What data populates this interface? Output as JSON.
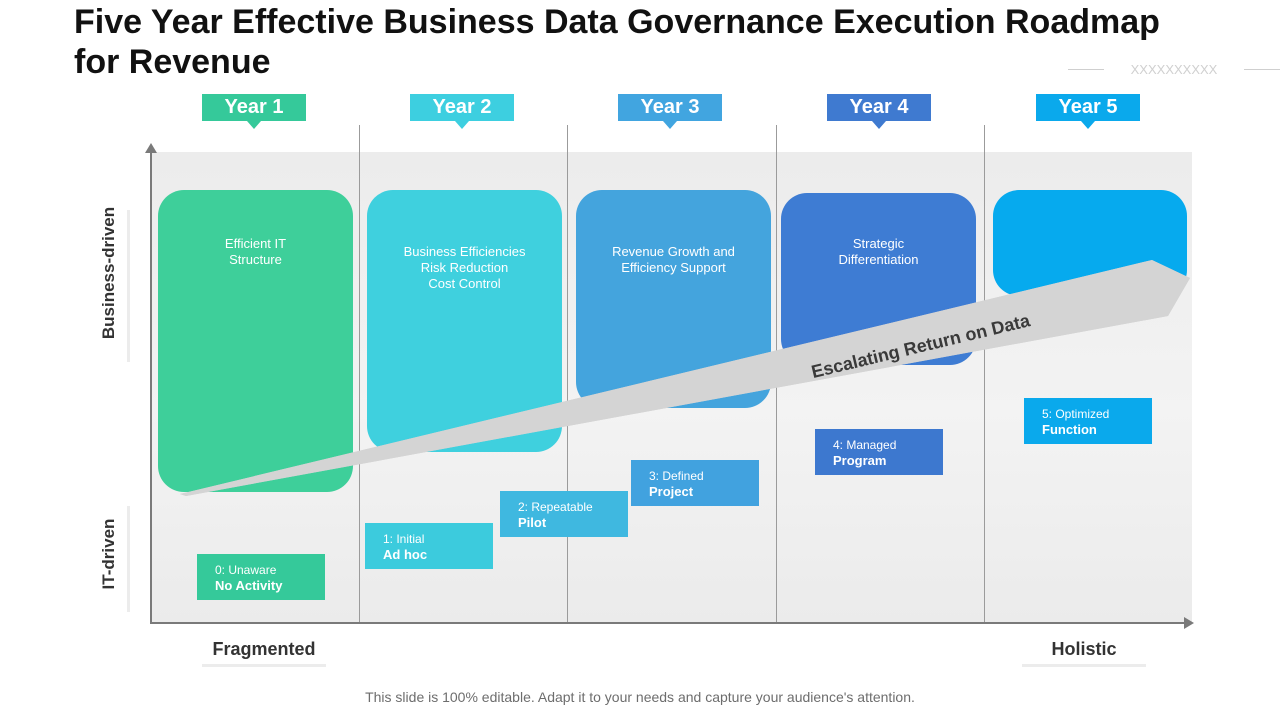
{
  "title": "Five Year Effective Business Data Governance Execution Roadmap for Revenue",
  "decor_text": "XXXXXXXXXX",
  "years": [
    {
      "label": "Year 1",
      "color": "#35c99a"
    },
    {
      "label": "Year 2",
      "color": "#3dcfe0"
    },
    {
      "label": "Year 3",
      "color": "#41a5e0"
    },
    {
      "label": "Year 4",
      "color": "#3f7ad0"
    },
    {
      "label": "Year 5",
      "color": "#0aa9ec"
    }
  ],
  "columns": [
    {
      "lines": [
        "Efficient IT",
        "Structure"
      ],
      "color": "#3ecf9a"
    },
    {
      "lines": [
        "Business Efficiencies",
        "Risk Reduction",
        "Cost Control"
      ],
      "color": "#3fd0de"
    },
    {
      "lines": [
        "Revenue Growth and",
        "Efficiency Support"
      ],
      "color": "#44a4dd"
    },
    {
      "lines": [
        "Strategic",
        "Differentiation"
      ],
      "color": "#3e7cd3"
    },
    {
      "lines": [],
      "color": "#06aaee"
    }
  ],
  "stages": [
    {
      "num": "0: Unaware",
      "name": "No Activity",
      "color": "#35c99a"
    },
    {
      "num": "1: Initial",
      "name": "Ad hoc",
      "color": "#3ccbdd"
    },
    {
      "num": "2: Repeatable",
      "name": "Pilot",
      "color": "#3fb8e0"
    },
    {
      "num": "3: Defined",
      "name": "Project",
      "color": "#41a2df"
    },
    {
      "num": "4: Managed",
      "name": "Program",
      "color": "#3d78cf"
    },
    {
      "num": "5: Optimized",
      "name": "Function",
      "color": "#0aa9ec"
    }
  ],
  "arrow_label": "Escalating Return on Data",
  "y_axis": {
    "top": "Business-driven",
    "bottom": "IT-driven"
  },
  "x_axis": {
    "left": "Fragmented",
    "right": "Holistic"
  },
  "footer": "This slide is 100% editable. Adapt it to your needs and capture your audience's attention."
}
